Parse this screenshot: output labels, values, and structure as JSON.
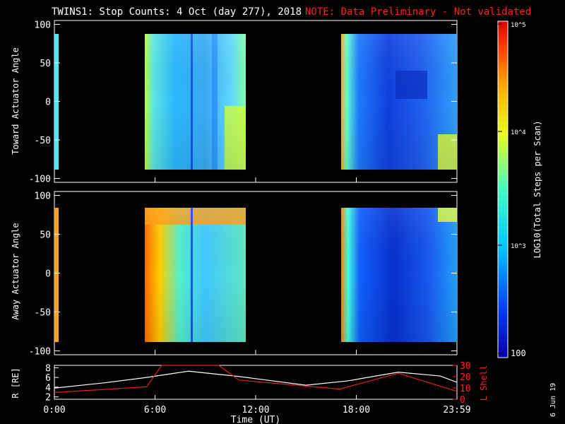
{
  "header": {
    "title": "TWINS1: Stop Counts:  4 Oct (day 277), 2018",
    "note": "NOTE: Data Preliminary - Not validated"
  },
  "colors": {
    "background": "#000000",
    "foreground": "#ffffff",
    "note": "#ff2020",
    "lshell": "#e02020"
  },
  "colorbar": {
    "label": "LOG10(Total Steps per Scan)",
    "ticks": [
      "10^5",
      "10^4",
      "10^3",
      "100"
    ]
  },
  "chart_data": [
    {
      "type": "heatmap",
      "name": "toward",
      "ylabel": "Toward Actuator Angle",
      "yticks": [
        "100",
        "50",
        "0",
        "-50",
        "-100"
      ],
      "ylim": [
        -105,
        105
      ],
      "xlim_hours": [
        0,
        24
      ],
      "data_blocks": [
        {
          "start_hour": 5.3,
          "end_hour": 11.3,
          "angle_range": [
            -88,
            88
          ]
        },
        {
          "start_hour": 16.6,
          "end_hour": 24.0,
          "angle_range": [
            -88,
            88
          ]
        }
      ],
      "colorscale_log10": [
        2,
        5
      ]
    },
    {
      "type": "heatmap",
      "name": "away",
      "ylabel": "Away Actuator Angle",
      "yticks": [
        "100",
        "50",
        "0",
        "-50",
        "-100"
      ],
      "ylim": [
        -105,
        105
      ],
      "xlim_hours": [
        0,
        24
      ],
      "data_blocks": [
        {
          "start_hour": 5.3,
          "end_hour": 11.3,
          "angle_range": [
            -88,
            88
          ]
        },
        {
          "start_hour": 16.6,
          "end_hour": 24.0,
          "angle_range": [
            -88,
            88
          ]
        }
      ],
      "colorscale_log10": [
        2,
        5
      ]
    },
    {
      "type": "line",
      "name": "orbit",
      "xlabel": "Time (UT)",
      "xticks": [
        "0:00",
        "6:00",
        "12:00",
        "18:00",
        "23:59"
      ],
      "ylabel": "R [RE]",
      "yticks": [
        "8",
        "6",
        "4",
        "2"
      ],
      "ylim": [
        1.5,
        8.5
      ],
      "y2label": "L Shell",
      "y2ticks": [
        "30",
        "20",
        "10",
        "0"
      ],
      "y2lim": [
        0,
        30
      ],
      "series": [
        {
          "name": "R",
          "x": [
            0,
            3,
            5.5,
            8,
            11,
            15,
            17.5,
            20.5,
            23,
            24
          ],
          "y": [
            3.8,
            4.9,
            6.0,
            7.3,
            6.2,
            4.4,
            5.3,
            7.1,
            6.3,
            5.0
          ]
        },
        {
          "name": "L Shell",
          "x": [
            0,
            5.5,
            6.4,
            9.8,
            11,
            17,
            20.5,
            24
          ],
          "y": [
            6,
            11,
            30,
            30,
            17,
            9,
            23,
            7
          ]
        }
      ]
    }
  ],
  "footer": {
    "date_stamp": "6 Jun 19"
  }
}
